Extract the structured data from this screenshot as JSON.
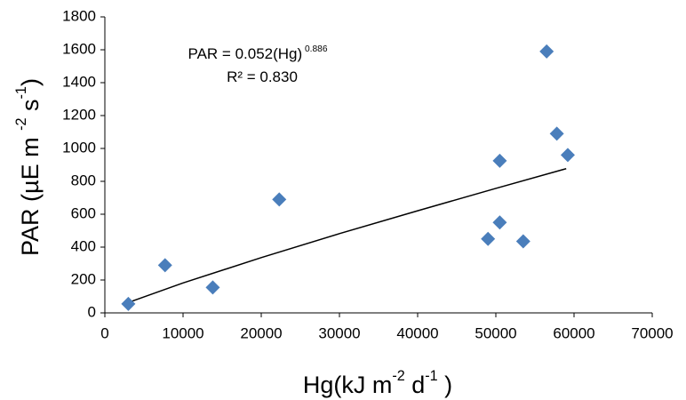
{
  "chart_data": {
    "type": "scatter",
    "x_label": [
      {
        "text": "Hg(kJ m"
      },
      {
        "text": "-2",
        "sup": true
      },
      {
        "text": " d"
      },
      {
        "text": "-1",
        "sup": true
      },
      {
        "text": " )"
      }
    ],
    "y_label": [
      {
        "text": "PAR (µE m "
      },
      {
        "text": "-2",
        "sup": true
      },
      {
        "text": " s"
      },
      {
        "text": "-1",
        "sup": true
      },
      {
        "text": ")"
      }
    ],
    "annotations": [
      [
        {
          "text": "PAR = 0.052(Hg)"
        },
        {
          "text": " 0.886",
          "sup": true
        }
      ],
      [
        {
          "text": "R² = 0.830"
        }
      ]
    ],
    "series": [
      {
        "color": "#4a7ebb",
        "marker": "diamond",
        "x": [
          3000,
          7700,
          13800,
          22300,
          49000,
          50500,
          50500,
          53500,
          56500,
          57800,
          59200
        ],
        "values": [
          55,
          290,
          155,
          690,
          450,
          550,
          925,
          435,
          1590,
          1090,
          960
        ]
      },
      {
        "color": "#000000",
        "marker": "line",
        "x": [
          3000,
          10000,
          20000,
          30000,
          40000,
          50000,
          59000
        ],
        "values": [
          63,
          182,
          336,
          482,
          621,
          757,
          877
        ]
      }
    ],
    "xlim": [
      0,
      70000
    ],
    "xticks": [
      0,
      10000,
      20000,
      30000,
      40000,
      50000,
      60000,
      70000
    ],
    "ylim": [
      0,
      1800
    ],
    "yticks": [
      0,
      200,
      400,
      600,
      800,
      1000,
      1200,
      1400,
      1600,
      1800
    ],
    "grid": false
  }
}
